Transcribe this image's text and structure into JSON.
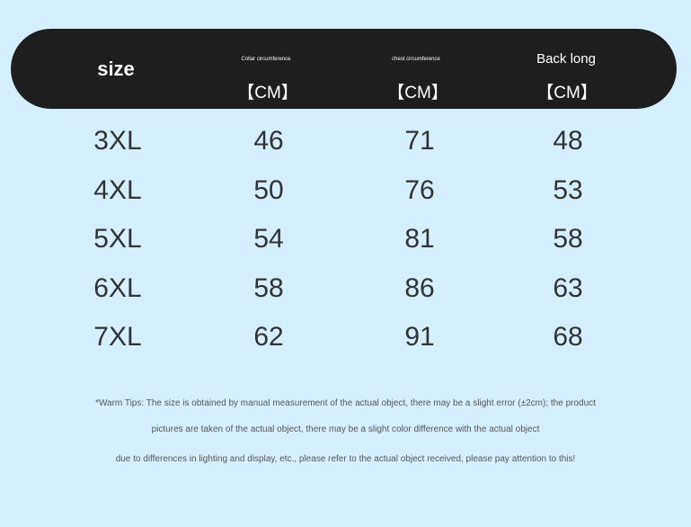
{
  "header": {
    "size": "size",
    "collar": "Collar circumference",
    "chest": "chest circumference",
    "back": "Back long",
    "unit": "【CM】"
  },
  "rows": [
    [
      "3XL",
      "46",
      "71",
      "48"
    ],
    [
      "4XL",
      "50",
      "76",
      "53"
    ],
    [
      "5XL",
      "54",
      "81",
      "58"
    ],
    [
      "6XL",
      "58",
      "86",
      "63"
    ],
    [
      "7XL",
      "62",
      "91",
      "68"
    ]
  ],
  "tips": [
    "*Warm Tips: The size is obtained by manual measurement of the actual object, there may be a slight error (±2cm); the product",
    "pictures are taken of the actual object, there may be a slight color difference with the actual object",
    "due to differences in lighting and display, etc., please refer to the actual object received, please pay attention to this!"
  ]
}
